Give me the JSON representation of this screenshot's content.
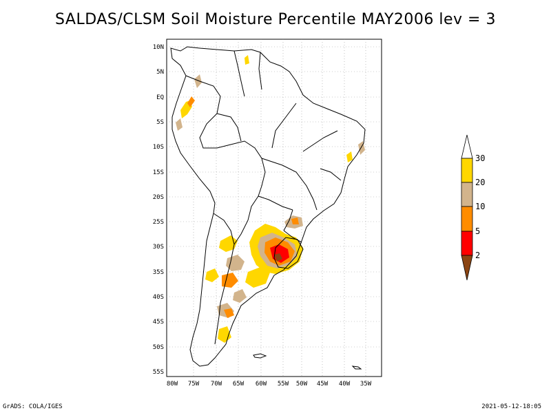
{
  "title": "SALDAS/CLSM Soil Moisture Percentile MAY2006 lev = 3",
  "footer": {
    "left": "GrADS: COLA/IGES",
    "right": "2021-05-12-18:05"
  },
  "map": {
    "lat_labels": [
      "10N",
      "5N",
      "EQ",
      "5S",
      "10S",
      "15S",
      "20S",
      "25S",
      "30S",
      "35S",
      "40S",
      "45S",
      "50S",
      "55S"
    ],
    "lon_labels": [
      "80W",
      "75W",
      "70W",
      "65W",
      "60W",
      "55W",
      "50W",
      "45W",
      "40W",
      "35W"
    ]
  },
  "colorbar": {
    "levels": [
      "30",
      "20",
      "10",
      "5",
      "2"
    ],
    "colors": {
      "above30": "#ffffff",
      "c20_30": "#ffd700",
      "c10_20": "#d2b48c",
      "c5_10": "#ff8c00",
      "c2_5": "#ff0000",
      "below2": "#8b4513"
    }
  }
}
